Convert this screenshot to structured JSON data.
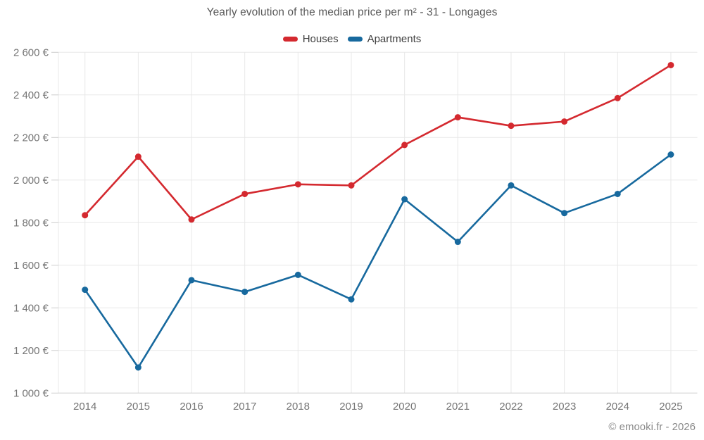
{
  "chart_data": {
    "type": "line",
    "title": "Yearly evolution of the median price per m² - 31 - Longages",
    "categories": [
      "2014",
      "2015",
      "2016",
      "2017",
      "2018",
      "2019",
      "2020",
      "2021",
      "2022",
      "2023",
      "2024",
      "2025"
    ],
    "series": [
      {
        "name": "Houses",
        "color": "#d4292f",
        "values": [
          1835,
          2110,
          1815,
          1935,
          1980,
          1975,
          2165,
          2295,
          2255,
          2275,
          2385,
          2540
        ]
      },
      {
        "name": "Apartments",
        "color": "#17699e",
        "values": [
          1485,
          1120,
          1530,
          1475,
          1555,
          1440,
          1910,
          1710,
          1975,
          1845,
          1935,
          2120
        ]
      }
    ],
    "unit": "€",
    "ylim": [
      1000,
      2600
    ],
    "y_ticks": [
      1000,
      1200,
      1400,
      1600,
      1800,
      2000,
      2200,
      2400,
      2600
    ],
    "y_tick_labels": [
      "1 000 €",
      "1 200 €",
      "1 400 €",
      "1 600 €",
      "1 800 €",
      "2 000 €",
      "2 200 €",
      "2 400 €",
      "2 600 €"
    ],
    "grid": true,
    "legend_position": "top",
    "point_radius": 4.5
  },
  "watermark": "© emooki.fr - 2026",
  "colors": {
    "grid": "#e8e8e8",
    "axis": "#cccccc",
    "tick_label": "#757575",
    "title": "#595959",
    "legend_text": "#404040",
    "watermark": "#8a8a8a"
  }
}
